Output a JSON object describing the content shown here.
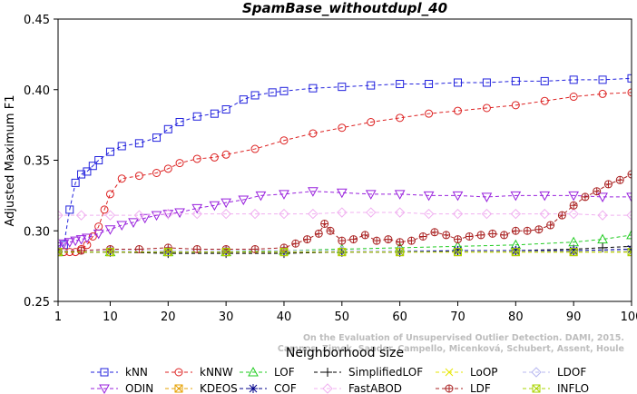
{
  "chart_data": {
    "type": "line",
    "title": "SpamBase_withoutdupl_40",
    "xlabel": "Neighborhood size",
    "ylabel": "Adjusted Maximum F1",
    "xlim": [
      1,
      100
    ],
    "ylim": [
      0.25,
      0.45
    ],
    "x_ticks": [
      1,
      10,
      20,
      30,
      40,
      50,
      60,
      70,
      80,
      90,
      100
    ],
    "y_ticks": [
      0.25,
      0.3,
      0.35,
      0.4,
      0.45
    ],
    "x_tick_labels": [
      "1",
      "10",
      "20",
      "30",
      "40",
      "50",
      "60",
      "70",
      "80",
      "90",
      "100"
    ],
    "y_tick_labels": [
      "0.25",
      "0.30",
      "0.35",
      "0.40",
      "0.45"
    ],
    "grid": false,
    "legend_position": "bottom",
    "watermark": [
      "Campos, Zimek, Sander, Campello, Micenková, Schubert, Assent, Houle",
      "On the Evaluation of Unsupervised Outlier Detection. DAMI, 2015."
    ],
    "series": [
      {
        "name": "kNN",
        "color": "#2222dd",
        "marker": "square",
        "x": [
          1,
          2,
          3,
          4,
          5,
          6,
          7,
          8,
          10,
          12,
          15,
          18,
          20,
          22,
          25,
          28,
          30,
          33,
          35,
          38,
          40,
          45,
          50,
          55,
          60,
          65,
          70,
          75,
          80,
          85,
          90,
          95,
          100
        ],
        "values": [
          0.285,
          0.29,
          0.315,
          0.334,
          0.34,
          0.342,
          0.346,
          0.35,
          0.356,
          0.36,
          0.362,
          0.366,
          0.372,
          0.377,
          0.381,
          0.383,
          0.386,
          0.393,
          0.396,
          0.398,
          0.399,
          0.401,
          0.402,
          0.403,
          0.404,
          0.404,
          0.405,
          0.405,
          0.406,
          0.406,
          0.407,
          0.407,
          0.408
        ]
      },
      {
        "name": "kNNW",
        "color": "#dd2222",
        "marker": "circle",
        "x": [
          1,
          2,
          3,
          4,
          5,
          6,
          7,
          8,
          9,
          10,
          12,
          15,
          18,
          20,
          22,
          25,
          28,
          30,
          35,
          40,
          45,
          50,
          55,
          60,
          65,
          70,
          75,
          80,
          85,
          90,
          95,
          100
        ],
        "values": [
          0.285,
          0.285,
          0.285,
          0.285,
          0.287,
          0.29,
          0.296,
          0.303,
          0.315,
          0.326,
          0.337,
          0.339,
          0.341,
          0.344,
          0.348,
          0.351,
          0.352,
          0.354,
          0.358,
          0.364,
          0.369,
          0.373,
          0.377,
          0.38,
          0.383,
          0.385,
          0.387,
          0.389,
          0.392,
          0.395,
          0.397,
          0.398
        ]
      },
      {
        "name": "LOF",
        "color": "#22cc22",
        "marker": "triangle",
        "x": [
          1,
          10,
          20,
          30,
          40,
          50,
          60,
          70,
          80,
          90,
          95,
          100
        ],
        "values": [
          0.285,
          0.285,
          0.285,
          0.285,
          0.286,
          0.287,
          0.288,
          0.289,
          0.29,
          0.292,
          0.294,
          0.297
        ]
      },
      {
        "name": "SimplifiedLOF",
        "color": "#000000",
        "marker": "plus",
        "x": [
          1,
          10,
          20,
          30,
          40,
          50,
          60,
          70,
          80,
          90,
          95,
          100
        ],
        "values": [
          0.285,
          0.285,
          0.284,
          0.284,
          0.284,
          0.285,
          0.285,
          0.286,
          0.286,
          0.287,
          0.288,
          0.289
        ]
      },
      {
        "name": "LoOP",
        "color": "#e6e600",
        "marker": "x",
        "x": [
          1,
          10,
          20,
          30,
          40,
          50,
          60,
          70,
          80,
          90,
          100
        ],
        "values": [
          0.285,
          0.285,
          0.285,
          0.285,
          0.285,
          0.285,
          0.285,
          0.285,
          0.285,
          0.285,
          0.285
        ]
      },
      {
        "name": "LDOF",
        "color": "#b8b8f0",
        "marker": "diamond",
        "x": [
          1,
          10,
          20,
          30,
          40,
          50,
          60,
          70,
          80,
          90,
          100
        ],
        "values": [
          0.286,
          0.286,
          0.286,
          0.286,
          0.286,
          0.286,
          0.286,
          0.286,
          0.286,
          0.286,
          0.286
        ]
      },
      {
        "name": "ODIN",
        "color": "#9922dd",
        "marker": "triangle-down",
        "x": [
          1,
          2,
          3,
          4,
          5,
          6,
          8,
          10,
          12,
          14,
          16,
          18,
          20,
          22,
          25,
          28,
          30,
          33,
          36,
          40,
          45,
          50,
          55,
          60,
          65,
          70,
          75,
          80,
          85,
          90,
          95,
          100
        ],
        "values": [
          0.289,
          0.291,
          0.292,
          0.293,
          0.294,
          0.295,
          0.298,
          0.301,
          0.304,
          0.306,
          0.309,
          0.311,
          0.312,
          0.313,
          0.316,
          0.318,
          0.32,
          0.322,
          0.325,
          0.326,
          0.328,
          0.327,
          0.326,
          0.326,
          0.325,
          0.325,
          0.324,
          0.325,
          0.325,
          0.325,
          0.324,
          0.324
        ]
      },
      {
        "name": "KDEOS",
        "color": "#e6a000",
        "marker": "square-x",
        "x": [
          1,
          10,
          20,
          30,
          40,
          50,
          60,
          70,
          80,
          90,
          100
        ],
        "values": [
          0.285,
          0.285,
          0.285,
          0.285,
          0.285,
          0.285,
          0.285,
          0.285,
          0.285,
          0.285,
          0.285
        ]
      },
      {
        "name": "COF",
        "color": "#00008b",
        "marker": "star",
        "x": [
          1,
          10,
          20,
          30,
          40,
          50,
          60,
          70,
          80,
          90,
          100
        ],
        "values": [
          0.285,
          0.285,
          0.285,
          0.285,
          0.285,
          0.285,
          0.285,
          0.286,
          0.286,
          0.286,
          0.287
        ]
      },
      {
        "name": "FastABOD",
        "color": "#f0b0f0",
        "marker": "diamond",
        "x": [
          1,
          5,
          10,
          15,
          20,
          25,
          30,
          35,
          40,
          45,
          50,
          55,
          60,
          65,
          70,
          75,
          80,
          85,
          90,
          95,
          100
        ],
        "values": [
          0.311,
          0.311,
          0.311,
          0.311,
          0.312,
          0.312,
          0.312,
          0.312,
          0.312,
          0.312,
          0.313,
          0.313,
          0.313,
          0.312,
          0.312,
          0.312,
          0.312,
          0.312,
          0.312,
          0.311,
          0.311
        ]
      },
      {
        "name": "LDF",
        "color": "#aa2222",
        "marker": "circle-plus",
        "x": [
          1,
          5,
          10,
          15,
          20,
          25,
          30,
          35,
          40,
          42,
          44,
          46,
          47,
          48,
          50,
          52,
          54,
          56,
          58,
          60,
          62,
          64,
          66,
          68,
          70,
          72,
          74,
          76,
          78,
          80,
          82,
          84,
          86,
          88,
          90,
          92,
          94,
          96,
          98,
          100
        ],
        "values": [
          0.285,
          0.286,
          0.287,
          0.287,
          0.288,
          0.287,
          0.287,
          0.287,
          0.288,
          0.291,
          0.294,
          0.298,
          0.305,
          0.3,
          0.293,
          0.294,
          0.297,
          0.293,
          0.294,
          0.292,
          0.293,
          0.296,
          0.299,
          0.297,
          0.294,
          0.296,
          0.297,
          0.298,
          0.297,
          0.3,
          0.3,
          0.301,
          0.304,
          0.311,
          0.318,
          0.324,
          0.328,
          0.333,
          0.336,
          0.34
        ]
      },
      {
        "name": "INFLO",
        "color": "#aad400",
        "marker": "square-x",
        "x": [
          1,
          10,
          20,
          30,
          40,
          50,
          60,
          70,
          80,
          90,
          100
        ],
        "values": [
          0.285,
          0.285,
          0.285,
          0.285,
          0.285,
          0.285,
          0.285,
          0.285,
          0.285,
          0.285,
          0.285
        ]
      }
    ]
  }
}
